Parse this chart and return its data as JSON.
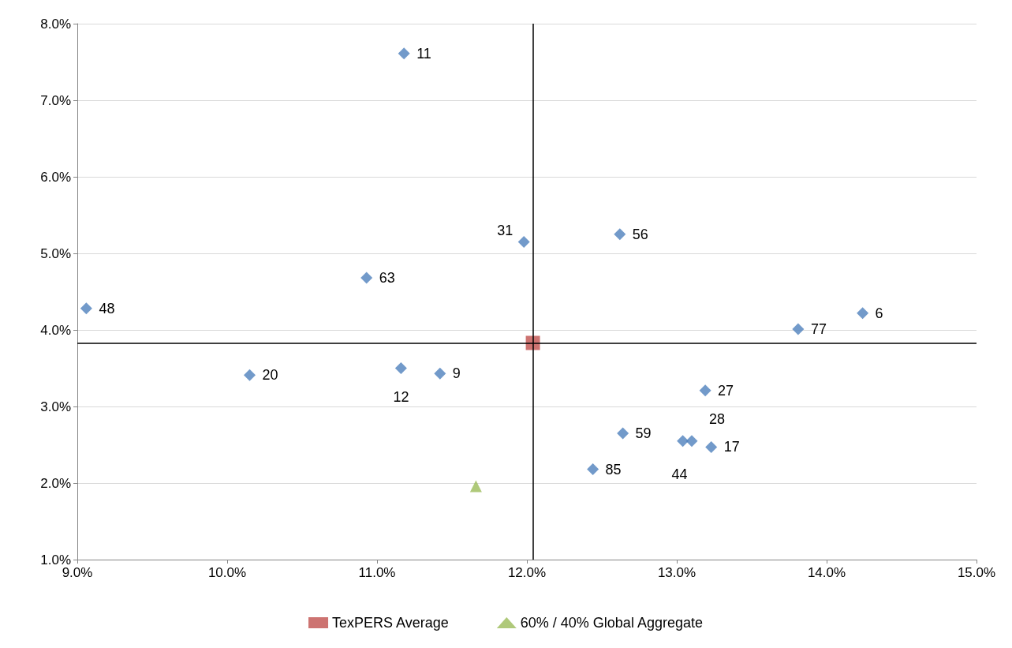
{
  "chart_data": {
    "type": "scatter",
    "xlim": [
      9,
      15
    ],
    "ylim": [
      1,
      8
    ],
    "xticks": [
      {
        "value": 9,
        "label": "9.0%"
      },
      {
        "value": 10,
        "label": "10.0%"
      },
      {
        "value": 11,
        "label": "11.0%"
      },
      {
        "value": 12,
        "label": "12.0%"
      },
      {
        "value": 13,
        "label": "13.0%"
      },
      {
        "value": 14,
        "label": "14.0%"
      },
      {
        "value": 15,
        "label": "15.0%"
      }
    ],
    "yticks": [
      {
        "value": 1,
        "label": "1.0%"
      },
      {
        "value": 2,
        "label": "2.0%"
      },
      {
        "value": 3,
        "label": "3.0%"
      },
      {
        "value": 4,
        "label": "4.0%"
      },
      {
        "value": 5,
        "label": "5.0%"
      },
      {
        "value": 6,
        "label": "6.0%"
      },
      {
        "value": 7,
        "label": "7.0%"
      },
      {
        "value": 8,
        "label": "8.0%"
      }
    ],
    "grid": "y",
    "legend": "bottom",
    "ref_lines": [
      {
        "axis": "x",
        "value": 12.04,
        "color": "#000000"
      },
      {
        "axis": "y",
        "value": 3.83,
        "color": "#000000"
      }
    ],
    "annotations": [
      {
        "text": "11",
        "x": 11.18,
        "y": 7.61
      },
      {
        "text": "31",
        "x": 11.98,
        "y": 5.15
      },
      {
        "text": "56",
        "x": 12.62,
        "y": 5.25
      },
      {
        "text": "63",
        "x": 10.93,
        "y": 4.68
      },
      {
        "text": "48",
        "x": 9.06,
        "y": 4.28
      },
      {
        "text": "77",
        "x": 13.81,
        "y": 4.01
      },
      {
        "text": "6",
        "x": 14.24,
        "y": 4.22
      },
      {
        "text": "20",
        "x": 10.15,
        "y": 3.41
      },
      {
        "text": "12",
        "x": 11.16,
        "y": 3.5
      },
      {
        "text": "9",
        "x": 11.42,
        "y": 3.43
      },
      {
        "text": "27",
        "x": 13.19,
        "y": 3.21
      },
      {
        "text": "59",
        "x": 12.64,
        "y": 2.65
      },
      {
        "text": "28",
        "x": 13.1,
        "y": 2.55
      },
      {
        "text": "44",
        "x": 13.04,
        "y": 2.55
      },
      {
        "text": "17",
        "x": 13.23,
        "y": 2.47
      },
      {
        "text": "85",
        "x": 12.44,
        "y": 2.18
      }
    ],
    "series": [
      {
        "color": "#4f81bd",
        "marker": "diamond",
        "x": [
          11.18,
          11.98,
          12.62,
          10.93,
          9.06,
          13.81,
          14.24,
          10.15,
          11.16,
          11.42,
          13.19,
          12.64,
          13.1,
          13.04,
          13.23,
          12.44
        ],
        "values": [
          7.61,
          5.15,
          5.25,
          4.68,
          4.28,
          4.01,
          4.22,
          3.41,
          3.5,
          3.43,
          3.21,
          2.65,
          2.55,
          2.55,
          2.47,
          2.18
        ]
      },
      {
        "name": "TexPERS Average",
        "color": "#c0504d",
        "marker": "square",
        "x": [
          12.04
        ],
        "values": [
          3.83
        ]
      },
      {
        "name": "60% / 40% Global Aggregate",
        "color": "#9bbb59",
        "marker": "triangle",
        "x": [
          11.66
        ],
        "values": [
          1.96
        ]
      }
    ]
  }
}
